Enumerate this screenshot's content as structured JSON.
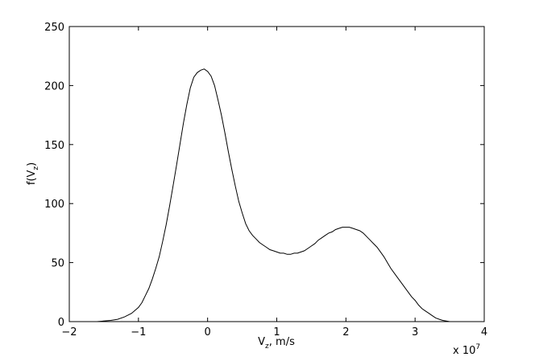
{
  "chart_data": {
    "type": "line",
    "title": "",
    "xlabel": {
      "main": "V",
      "sub": "z",
      "rest": ", m/s"
    },
    "ylabel": {
      "main": "f(V",
      "sub": "z",
      "rest": ")"
    },
    "x_multiplier": "x 10",
    "x_multiplier_exp": "7",
    "xlim": [
      -2,
      4
    ],
    "ylim": [
      0,
      250
    ],
    "xticks": [
      -2,
      -1,
      0,
      1,
      2,
      3,
      4
    ],
    "xtick_labels": [
      "−2",
      "−1",
      "0",
      "1",
      "2",
      "3",
      "4"
    ],
    "yticks": [
      0,
      50,
      100,
      150,
      200,
      250
    ],
    "ytick_labels": [
      "0",
      "50",
      "100",
      "150",
      "200",
      "250"
    ],
    "grid": false,
    "legend": "none",
    "line_color": "#000000",
    "series": [
      {
        "x": [
          -1.8,
          -1.6,
          -1.4,
          -1.3,
          -1.2,
          -1.1,
          -1.0,
          -0.95,
          -0.9,
          -0.85,
          -0.8,
          -0.75,
          -0.7,
          -0.65,
          -0.6,
          -0.55,
          -0.5,
          -0.45,
          -0.4,
          -0.35,
          -0.3,
          -0.25,
          -0.2,
          -0.15,
          -0.1,
          -0.05,
          0.0,
          0.05,
          0.1,
          0.15,
          0.2,
          0.25,
          0.3,
          0.35,
          0.4,
          0.45,
          0.5,
          0.55,
          0.6,
          0.65,
          0.7,
          0.75,
          0.8,
          0.85,
          0.9,
          0.95,
          1.0,
          1.05,
          1.1,
          1.15,
          1.2,
          1.25,
          1.3,
          1.35,
          1.4,
          1.45,
          1.5,
          1.55,
          1.6,
          1.65,
          1.7,
          1.75,
          1.8,
          1.85,
          1.9,
          1.95,
          2.0,
          2.05,
          2.1,
          2.15,
          2.2,
          2.25,
          2.3,
          2.35,
          2.4,
          2.45,
          2.5,
          2.55,
          2.6,
          2.65,
          2.7,
          2.75,
          2.8,
          2.85,
          2.9,
          2.95,
          3.0,
          3.05,
          3.1,
          3.15,
          3.2,
          3.25,
          3.3,
          3.35,
          3.4,
          3.5,
          3.6
        ],
        "y": [
          0,
          0,
          1,
          2,
          4,
          7,
          12,
          16,
          22,
          28,
          36,
          45,
          55,
          68,
          82,
          98,
          115,
          132,
          150,
          168,
          184,
          198,
          207,
          211,
          213,
          214,
          212,
          208,
          200,
          188,
          175,
          160,
          144,
          129,
          115,
          102,
          92,
          83,
          77,
          73,
          70,
          67,
          65,
          63,
          61,
          60,
          59,
          58,
          58,
          57,
          57,
          58,
          58,
          59,
          60,
          62,
          64,
          66,
          69,
          71,
          73,
          75,
          76,
          78,
          79,
          80,
          80,
          80,
          79,
          78,
          77,
          75,
          72,
          69,
          66,
          63,
          59,
          55,
          50,
          45,
          41,
          37,
          33,
          29,
          25,
          21,
          18,
          14,
          11,
          9,
          7,
          5,
          3,
          2,
          1,
          0,
          0
        ]
      }
    ]
  }
}
